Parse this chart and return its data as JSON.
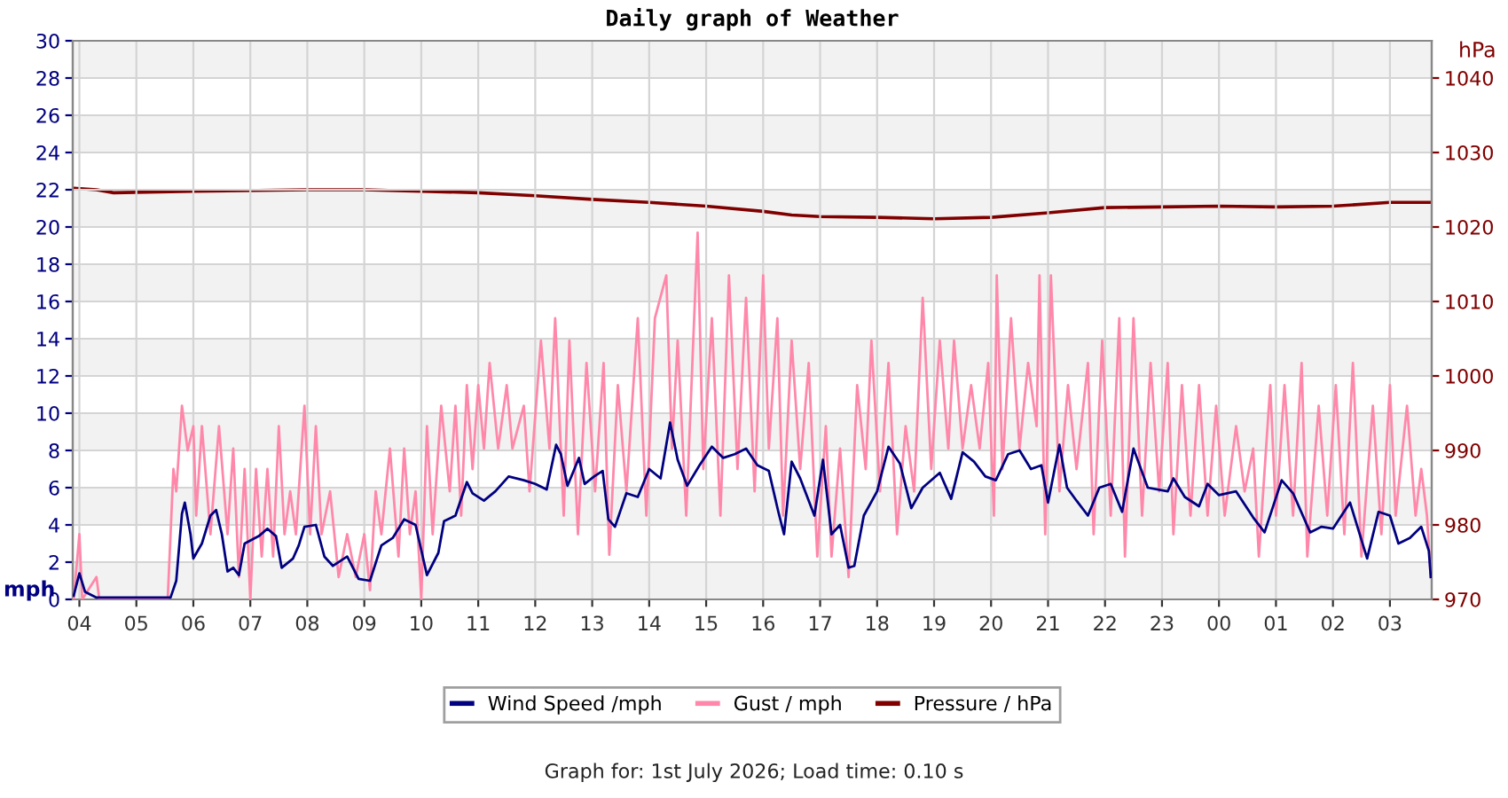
{
  "chart_data": {
    "type": "line",
    "title": "Daily graph of Weather",
    "ylabel": "mph",
    "y2label": "hPa",
    "annotations": [
      "Graph for: 1st July 2026; Load time: 0.10 s"
    ],
    "xlim": [
      "2026-06-30T03:53",
      "2026-07-01T03:44"
    ],
    "xticks": [
      {
        "value": "2026-06-30T04:00",
        "label": "04"
      },
      {
        "value": "2026-06-30T05:00",
        "label": "05"
      },
      {
        "value": "2026-06-30T06:00",
        "label": "06"
      },
      {
        "value": "2026-06-30T07:00",
        "label": "07"
      },
      {
        "value": "2026-06-30T08:00",
        "label": "08"
      },
      {
        "value": "2026-06-30T09:00",
        "label": "09"
      },
      {
        "value": "2026-06-30T10:00",
        "label": "10"
      },
      {
        "value": "2026-06-30T11:00",
        "label": "11"
      },
      {
        "value": "2026-06-30T12:00",
        "label": "12"
      },
      {
        "value": "2026-06-30T13:00",
        "label": "13"
      },
      {
        "value": "2026-06-30T14:00",
        "label": "14"
      },
      {
        "value": "2026-06-30T15:00",
        "label": "15"
      },
      {
        "value": "2026-06-30T16:00",
        "label": "16"
      },
      {
        "value": "2026-06-30T17:00",
        "label": "17"
      },
      {
        "value": "2026-06-30T18:00",
        "label": "18"
      },
      {
        "value": "2026-06-30T19:00",
        "label": "19"
      },
      {
        "value": "2026-06-30T20:00",
        "label": "20"
      },
      {
        "value": "2026-06-30T21:00",
        "label": "21"
      },
      {
        "value": "2026-06-30T22:00",
        "label": "22"
      },
      {
        "value": "2026-06-30T23:00",
        "label": "23"
      },
      {
        "value": "2026-07-01T00:00",
        "label": "00"
      },
      {
        "value": "2026-07-01T01:00",
        "label": "01"
      },
      {
        "value": "2026-07-01T02:00",
        "label": "02"
      },
      {
        "value": "2026-07-01T03:00",
        "label": "03"
      }
    ],
    "ylim": [
      0,
      30
    ],
    "yticks": [
      0,
      2,
      4,
      6,
      8,
      10,
      12,
      14,
      16,
      18,
      20,
      22,
      24,
      26,
      28,
      30
    ],
    "y2lim": [
      970,
      1045
    ],
    "y2ticks": [
      970,
      980,
      990,
      1000,
      1010,
      1020,
      1030,
      1040
    ],
    "grid": true,
    "legend": "bottom",
    "series": [
      {
        "name": "Wind Speed /mph",
        "color": "#000080",
        "x": [
          "2026-06-30T03:54",
          "2026-06-30T04:00",
          "2026-06-30T04:06",
          "2026-06-30T04:18",
          "2026-06-30T05:36",
          "2026-06-30T05:42",
          "2026-06-30T05:48",
          "2026-06-30T05:51",
          "2026-06-30T05:57",
          "2026-06-30T06:00",
          "2026-06-30T06:09",
          "2026-06-30T06:18",
          "2026-06-30T06:24",
          "2026-06-30T06:30",
          "2026-06-30T06:36",
          "2026-06-30T06:42",
          "2026-06-30T06:48",
          "2026-06-30T06:54",
          "2026-06-30T07:09",
          "2026-06-30T07:18",
          "2026-06-30T07:27",
          "2026-06-30T07:33",
          "2026-06-30T07:45",
          "2026-06-30T07:51",
          "2026-06-30T07:57",
          "2026-06-30T08:09",
          "2026-06-30T08:18",
          "2026-06-30T08:27",
          "2026-06-30T08:42",
          "2026-06-30T08:54",
          "2026-06-30T09:06",
          "2026-06-30T09:18",
          "2026-06-30T09:30",
          "2026-06-30T09:42",
          "2026-06-30T09:54",
          "2026-06-30T10:06",
          "2026-06-30T10:18",
          "2026-06-30T10:24",
          "2026-06-30T10:36",
          "2026-06-30T10:48",
          "2026-06-30T10:54",
          "2026-06-30T11:06",
          "2026-06-30T11:18",
          "2026-06-30T11:32",
          "2026-06-30T11:48",
          "2026-06-30T12:00",
          "2026-06-30T12:12",
          "2026-06-30T12:22",
          "2026-06-30T12:27",
          "2026-06-30T12:34",
          "2026-06-30T12:46",
          "2026-06-30T12:52",
          "2026-06-30T13:02",
          "2026-06-30T13:11",
          "2026-06-30T13:17",
          "2026-06-30T13:24",
          "2026-06-30T13:36",
          "2026-06-30T13:48",
          "2026-06-30T14:00",
          "2026-06-30T14:12",
          "2026-06-30T14:22",
          "2026-06-30T14:30",
          "2026-06-30T14:40",
          "2026-06-30T14:53",
          "2026-06-30T15:06",
          "2026-06-30T15:18",
          "2026-06-30T15:30",
          "2026-06-30T15:42",
          "2026-06-30T15:54",
          "2026-06-30T16:06",
          "2026-06-30T16:16",
          "2026-06-30T16:22",
          "2026-06-30T16:30",
          "2026-06-30T16:39",
          "2026-06-30T16:54",
          "2026-06-30T17:03",
          "2026-06-30T17:12",
          "2026-06-30T17:21",
          "2026-06-30T17:30",
          "2026-06-30T17:36",
          "2026-06-30T17:46",
          "2026-06-30T18:00",
          "2026-06-30T18:12",
          "2026-06-30T18:24",
          "2026-06-30T18:36",
          "2026-06-30T18:48",
          "2026-06-30T19:06",
          "2026-06-30T19:18",
          "2026-06-30T19:30",
          "2026-06-30T19:42",
          "2026-06-30T19:54",
          "2026-06-30T20:05",
          "2026-06-30T20:18",
          "2026-06-30T20:30",
          "2026-06-30T20:42",
          "2026-06-30T20:53",
          "2026-06-30T21:00",
          "2026-06-30T21:12",
          "2026-06-30T21:20",
          "2026-06-30T21:30",
          "2026-06-30T21:42",
          "2026-06-30T21:54",
          "2026-06-30T22:06",
          "2026-06-30T22:18",
          "2026-06-30T22:30",
          "2026-06-30T22:45",
          "2026-06-30T23:06",
          "2026-06-30T23:12",
          "2026-06-30T23:24",
          "2026-06-30T23:39",
          "2026-06-30T23:48",
          "2026-07-01T00:00",
          "2026-07-01T00:18",
          "2026-07-01T00:36",
          "2026-07-01T00:48",
          "2026-07-01T01:06",
          "2026-07-01T01:18",
          "2026-07-01T01:36",
          "2026-07-01T01:48",
          "2026-07-01T02:00",
          "2026-07-01T02:18",
          "2026-07-01T02:36",
          "2026-07-01T02:48",
          "2026-07-01T03:00",
          "2026-07-01T03:09",
          "2026-07-01T03:21",
          "2026-07-01T03:33",
          "2026-07-01T03:41",
          "2026-07-01T03:43"
        ],
        "values": [
          0.2,
          1.4,
          0.4,
          0.1,
          0.1,
          1.0,
          4.6,
          5.2,
          3.5,
          2.2,
          3.0,
          4.5,
          4.8,
          3.5,
          1.5,
          1.7,
          1.3,
          3.0,
          3.4,
          3.8,
          3.4,
          1.7,
          2.2,
          2.9,
          3.9,
          4.0,
          2.3,
          1.8,
          2.3,
          1.1,
          1.0,
          2.9,
          3.3,
          4.3,
          4.0,
          1.3,
          2.5,
          4.2,
          4.5,
          6.3,
          5.7,
          5.3,
          5.8,
          6.6,
          6.4,
          6.2,
          5.9,
          8.3,
          7.8,
          6.1,
          7.6,
          6.2,
          6.6,
          6.9,
          4.3,
          3.9,
          5.7,
          5.5,
          7.0,
          6.5,
          9.5,
          7.5,
          6.1,
          7.2,
          8.2,
          7.6,
          7.8,
          8.1,
          7.2,
          6.9,
          4.7,
          3.5,
          7.4,
          6.5,
          4.5,
          7.5,
          3.5,
          4.0,
          1.7,
          1.8,
          4.5,
          5.8,
          8.2,
          7.3,
          4.9,
          6.0,
          6.8,
          5.4,
          7.9,
          7.4,
          6.6,
          6.4,
          7.8,
          8.0,
          7.0,
          7.2,
          5.2,
          8.3,
          6.0,
          5.3,
          4.5,
          6.0,
          6.2,
          4.7,
          8.1,
          6.0,
          5.8,
          6.5,
          5.5,
          5.0,
          6.2,
          5.6,
          5.8,
          4.4,
          3.6,
          6.4,
          5.7,
          3.6,
          3.9,
          3.8,
          5.2,
          2.2,
          4.7,
          4.5,
          3.0,
          3.3,
          3.9,
          2.6,
          1.2
        ]
      },
      {
        "name": "Gust / mph",
        "color": "#ff88aa",
        "x": [
          "2026-06-30T03:54",
          "2026-06-30T04:00",
          "2026-06-30T04:03",
          "2026-06-30T04:18",
          "2026-06-30T04:21",
          "2026-06-30T05:33",
          "2026-06-30T05:39",
          "2026-06-30T05:42",
          "2026-06-30T05:48",
          "2026-06-30T05:54",
          "2026-06-30T06:00",
          "2026-06-30T06:03",
          "2026-06-30T06:09",
          "2026-06-30T06:18",
          "2026-06-30T06:27",
          "2026-06-30T06:36",
          "2026-06-30T06:42",
          "2026-06-30T06:48",
          "2026-06-30T06:54",
          "2026-06-30T07:00",
          "2026-06-30T07:06",
          "2026-06-30T07:12",
          "2026-06-30T07:18",
          "2026-06-30T07:24",
          "2026-06-30T07:30",
          "2026-06-30T07:36",
          "2026-06-30T07:42",
          "2026-06-30T07:48",
          "2026-06-30T07:57",
          "2026-06-30T08:03",
          "2026-06-30T08:09",
          "2026-06-30T08:15",
          "2026-06-30T08:24",
          "2026-06-30T08:33",
          "2026-06-30T08:42",
          "2026-06-30T08:51",
          "2026-06-30T09:00",
          "2026-06-30T09:06",
          "2026-06-30T09:12",
          "2026-06-30T09:18",
          "2026-06-30T09:27",
          "2026-06-30T09:36",
          "2026-06-30T09:42",
          "2026-06-30T09:48",
          "2026-06-30T09:54",
          "2026-06-30T10:00",
          "2026-06-30T10:06",
          "2026-06-30T10:12",
          "2026-06-30T10:21",
          "2026-06-30T10:30",
          "2026-06-30T10:36",
          "2026-06-30T10:42",
          "2026-06-30T10:48",
          "2026-06-30T10:54",
          "2026-06-30T11:00",
          "2026-06-30T11:06",
          "2026-06-30T11:12",
          "2026-06-30T11:21",
          "2026-06-30T11:30",
          "2026-06-30T11:36",
          "2026-06-30T11:48",
          "2026-06-30T11:54",
          "2026-06-30T12:06",
          "2026-06-30T12:15",
          "2026-06-30T12:21",
          "2026-06-30T12:30",
          "2026-06-30T12:36",
          "2026-06-30T12:45",
          "2026-06-30T12:54",
          "2026-06-30T13:03",
          "2026-06-30T13:12",
          "2026-06-30T13:18",
          "2026-06-30T13:27",
          "2026-06-30T13:36",
          "2026-06-30T13:48",
          "2026-06-30T13:57",
          "2026-06-30T14:06",
          "2026-06-30T14:18",
          "2026-06-30T14:24",
          "2026-06-30T14:30",
          "2026-06-30T14:39",
          "2026-06-30T14:51",
          "2026-06-30T14:57",
          "2026-06-30T15:06",
          "2026-06-30T15:15",
          "2026-06-30T15:24",
          "2026-06-30T15:33",
          "2026-06-30T15:42",
          "2026-06-30T15:51",
          "2026-06-30T16:00",
          "2026-06-30T16:06",
          "2026-06-30T16:15",
          "2026-06-30T16:21",
          "2026-06-30T16:30",
          "2026-06-30T16:39",
          "2026-06-30T16:48",
          "2026-06-30T16:57",
          "2026-06-30T17:06",
          "2026-06-30T17:12",
          "2026-06-30T17:21",
          "2026-06-30T17:30",
          "2026-06-30T17:39",
          "2026-06-30T17:48",
          "2026-06-30T17:54",
          "2026-06-30T18:03",
          "2026-06-30T18:12",
          "2026-06-30T18:21",
          "2026-06-30T18:30",
          "2026-06-30T18:39",
          "2026-06-30T18:48",
          "2026-06-30T18:57",
          "2026-06-30T19:06",
          "2026-06-30T19:15",
          "2026-06-30T19:21",
          "2026-06-30T19:30",
          "2026-06-30T19:39",
          "2026-06-30T19:48",
          "2026-06-30T19:57",
          "2026-06-30T20:03",
          "2026-06-30T20:06",
          "2026-06-30T20:12",
          "2026-06-30T20:21",
          "2026-06-30T20:30",
          "2026-06-30T20:39",
          "2026-06-30T20:48",
          "2026-06-30T20:51",
          "2026-06-30T20:57",
          "2026-06-30T21:03",
          "2026-06-30T21:12",
          "2026-06-30T21:21",
          "2026-06-30T21:30",
          "2026-06-30T21:42",
          "2026-06-30T21:48",
          "2026-06-30T21:57",
          "2026-06-30T22:06",
          "2026-06-30T22:15",
          "2026-06-30T22:21",
          "2026-06-30T22:30",
          "2026-06-30T22:39",
          "2026-06-30T22:48",
          "2026-06-30T22:57",
          "2026-06-30T23:06",
          "2026-06-30T23:12",
          "2026-06-30T23:21",
          "2026-06-30T23:30",
          "2026-06-30T23:39",
          "2026-06-30T23:48",
          "2026-06-30T23:57",
          "2026-07-01T00:06",
          "2026-07-01T00:18",
          "2026-07-01T00:27",
          "2026-07-01T00:36",
          "2026-07-01T00:42",
          "2026-07-01T00:54",
          "2026-07-01T01:00",
          "2026-07-01T01:09",
          "2026-07-01T01:18",
          "2026-07-01T01:27",
          "2026-07-01T01:33",
          "2026-07-01T01:45",
          "2026-07-01T01:54",
          "2026-07-01T02:03",
          "2026-07-01T02:12",
          "2026-07-01T02:21",
          "2026-07-01T02:30",
          "2026-07-01T02:42",
          "2026-07-01T02:51",
          "2026-07-01T03:00",
          "2026-07-01T03:06",
          "2026-07-01T03:18",
          "2026-07-01T03:27",
          "2026-07-01T03:33",
          "2026-07-01T03:39",
          "2026-07-01T03:43"
        ],
        "values": [
          0,
          3.5,
          0,
          1.2,
          0,
          0,
          7,
          5.8,
          10.4,
          8,
          9.3,
          4.5,
          9.3,
          3.5,
          9.3,
          3.5,
          8.1,
          1.2,
          7,
          0,
          7,
          2.3,
          7,
          2.3,
          9.3,
          3.5,
          5.8,
          3.5,
          10.4,
          3.5,
          9.3,
          3.5,
          5.8,
          1.2,
          3.5,
          1.2,
          3.5,
          0.5,
          5.8,
          3.5,
          8.1,
          2.3,
          8.1,
          3.5,
          5.8,
          0,
          9.3,
          3.5,
          10.4,
          5.8,
          10.4,
          4.5,
          11.5,
          7,
          11.5,
          8.1,
          12.7,
          8.1,
          11.5,
          8.1,
          10.4,
          5.8,
          13.9,
          8.1,
          15.1,
          4.5,
          13.9,
          3.5,
          12.7,
          5.8,
          12.7,
          2.4,
          11.5,
          5.8,
          15.1,
          4.5,
          15.1,
          17.4,
          8.1,
          13.9,
          4.5,
          19.7,
          7,
          15.1,
          4.5,
          17.4,
          7,
          16.2,
          5.8,
          17.4,
          8.1,
          15.1,
          4.5,
          13.9,
          7,
          12.7,
          2.3,
          9.3,
          2.3,
          8.1,
          1.2,
          11.5,
          7,
          13.9,
          5.8,
          12.7,
          3.5,
          9.3,
          5.8,
          16.2,
          7,
          13.9,
          8.1,
          13.9,
          8.1,
          11.5,
          8.1,
          12.7,
          4.5,
          17.4,
          7,
          15.1,
          8.1,
          12.7,
          9.3,
          17.4,
          3.5,
          17.4,
          5.8,
          11.5,
          7,
          12.7,
          3.5,
          13.9,
          4.5,
          15.1,
          2.3,
          15.1,
          4.5,
          12.7,
          5.8,
          12.7,
          3.5,
          11.5,
          4.5,
          11.5,
          4.5,
          10.4,
          4.5,
          9.3,
          5.8,
          8.1,
          2.3,
          11.5,
          4.5,
          11.5,
          4.5,
          12.7,
          2.3,
          10.4,
          4.5,
          11.5,
          3.5,
          12.7,
          2.3,
          10.4,
          3.5,
          11.5,
          4.5,
          10.4,
          4.5,
          7,
          4.5,
          1.2
        ]
      },
      {
        "name": "Pressure / hPa",
        "color": "#800000",
        "axis": "y2",
        "x": [
          "2026-06-30T03:54",
          "2026-06-30T04:18",
          "2026-06-30T04:36",
          "2026-06-30T06:00",
          "2026-06-30T08:00",
          "2026-06-30T09:00",
          "2026-06-30T10:00",
          "2026-06-30T11:00",
          "2026-06-30T12:00",
          "2026-06-30T13:00",
          "2026-06-30T14:00",
          "2026-06-30T15:00",
          "2026-06-30T16:00",
          "2026-06-30T16:30",
          "2026-06-30T17:00",
          "2026-06-30T18:00",
          "2026-06-30T19:00",
          "2026-06-30T20:00",
          "2026-06-30T21:00",
          "2026-06-30T22:00",
          "2026-06-30T23:00",
          "2026-07-01T00:00",
          "2026-07-01T01:00",
          "2026-07-01T02:00",
          "2026-07-01T03:00",
          "2026-07-01T03:43"
        ],
        "values": [
          1025.2,
          1025.0,
          1024.6,
          1024.8,
          1025.0,
          1025.0,
          1024.8,
          1024.6,
          1024.2,
          1023.7,
          1023.3,
          1022.8,
          1022.1,
          1021.6,
          1021.4,
          1021.3,
          1021.1,
          1021.3,
          1021.9,
          1022.6,
          1022.7,
          1022.8,
          1022.7,
          1022.8,
          1023.3,
          1023.3
        ]
      }
    ]
  }
}
